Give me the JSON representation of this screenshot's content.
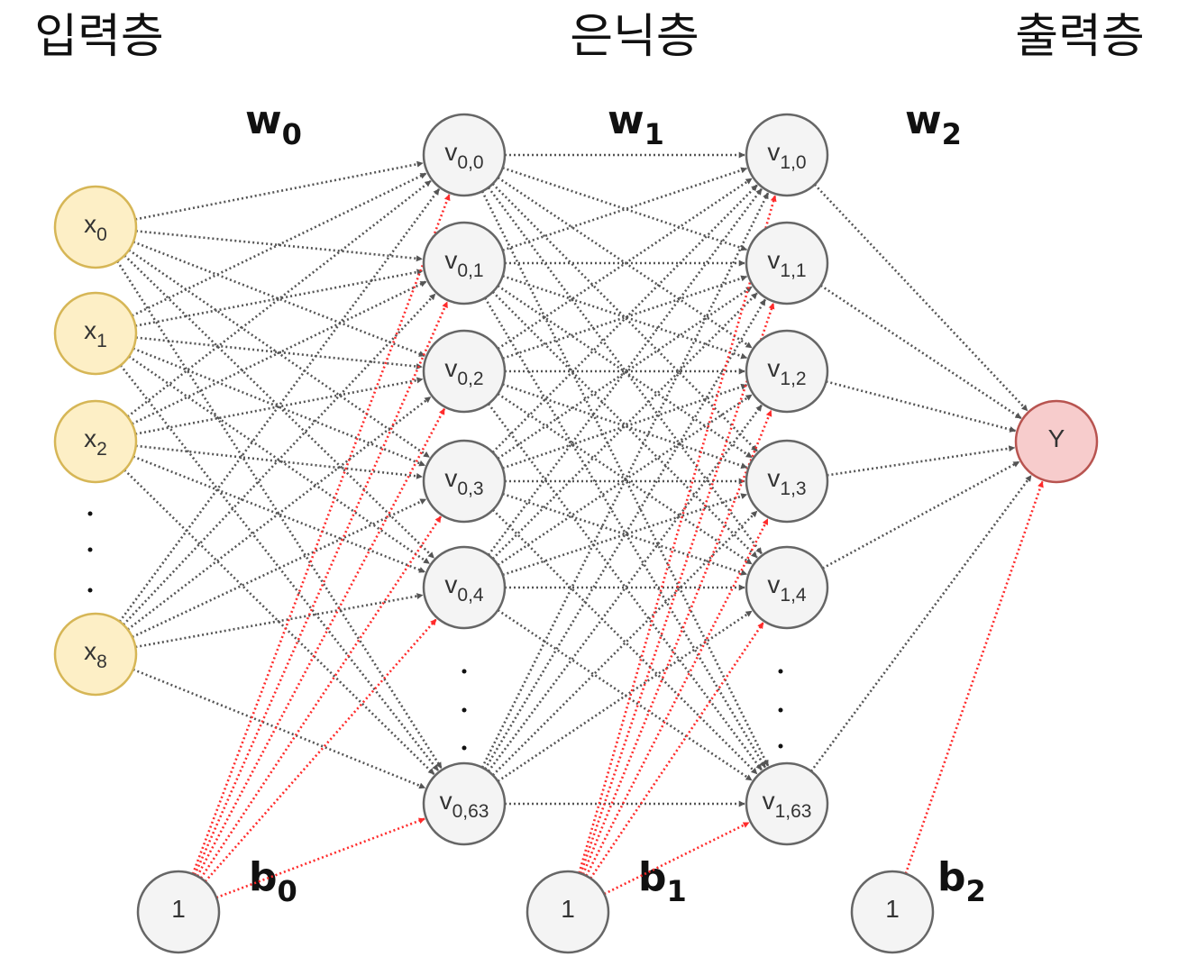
{
  "titles": {
    "input": "입력층",
    "hidden": "은닉층",
    "output": "출력층"
  },
  "weights": [
    {
      "base": "w",
      "sub": "0"
    },
    {
      "base": "w",
      "sub": "1"
    },
    {
      "base": "w",
      "sub": "2"
    }
  ],
  "biases": [
    {
      "base": "b",
      "sub": "0"
    },
    {
      "base": "b",
      "sub": "1"
    },
    {
      "base": "b",
      "sub": "2"
    }
  ],
  "input_nodes": [
    {
      "base": "x",
      "sub": "0"
    },
    {
      "base": "x",
      "sub": "1"
    },
    {
      "base": "x",
      "sub": "2"
    },
    {
      "base": "x",
      "sub": "8"
    }
  ],
  "hidden1_nodes": [
    {
      "base": "v",
      "sub": "0,0"
    },
    {
      "base": "v",
      "sub": "0,1"
    },
    {
      "base": "v",
      "sub": "0,2"
    },
    {
      "base": "v",
      "sub": "0,3"
    },
    {
      "base": "v",
      "sub": "0,4"
    },
    {
      "base": "v",
      "sub": "0,63"
    }
  ],
  "hidden2_nodes": [
    {
      "base": "v",
      "sub": "1,0"
    },
    {
      "base": "v",
      "sub": "1,1"
    },
    {
      "base": "v",
      "sub": "1,2"
    },
    {
      "base": "v",
      "sub": "1,3"
    },
    {
      "base": "v",
      "sub": "1,4"
    },
    {
      "base": "v",
      "sub": "1,63"
    }
  ],
  "output_node": {
    "label": "Y"
  },
  "bias_node_label": "1",
  "colors": {
    "input_fill": "#fdefc6",
    "input_stroke": "#d6b656",
    "hidden_fill": "#f4f4f4",
    "hidden_stroke": "#666666",
    "output_fill": "#f7cccc",
    "output_stroke": "#b85450",
    "weight_edge": "#555555",
    "bias_edge": "#ff2b2b"
  }
}
